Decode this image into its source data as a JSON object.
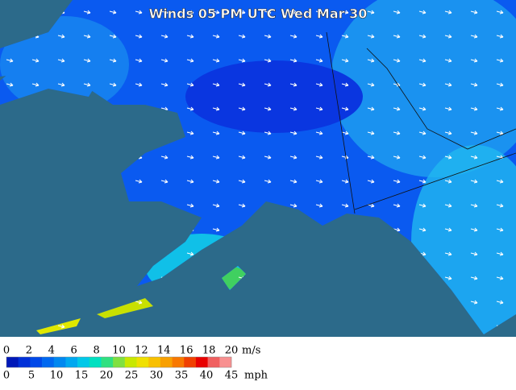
{
  "title": "Winds 05 PM UTC Wed Mar 30",
  "legend": {
    "colors": [
      "#0018b8",
      "#0030d8",
      "#0048e8",
      "#0068f0",
      "#0088f0",
      "#00a8f0",
      "#00c8e8",
      "#00e0c0",
      "#30e080",
      "#80e040",
      "#c8e800",
      "#f0e000",
      "#f8c000",
      "#f8a000",
      "#f87800",
      "#f04000",
      "#e80000",
      "#f06060",
      "#f89090"
    ],
    "ms_labels": [
      "0",
      "2",
      "4",
      "6",
      "8",
      "10",
      "12",
      "14",
      "16",
      "18",
      "20"
    ],
    "ms_unit": "m/s",
    "mph_labels": [
      "0",
      "5",
      "10",
      "15",
      "20",
      "25",
      "30",
      "35",
      "40",
      "45"
    ],
    "mph_unit": "mph"
  }
}
